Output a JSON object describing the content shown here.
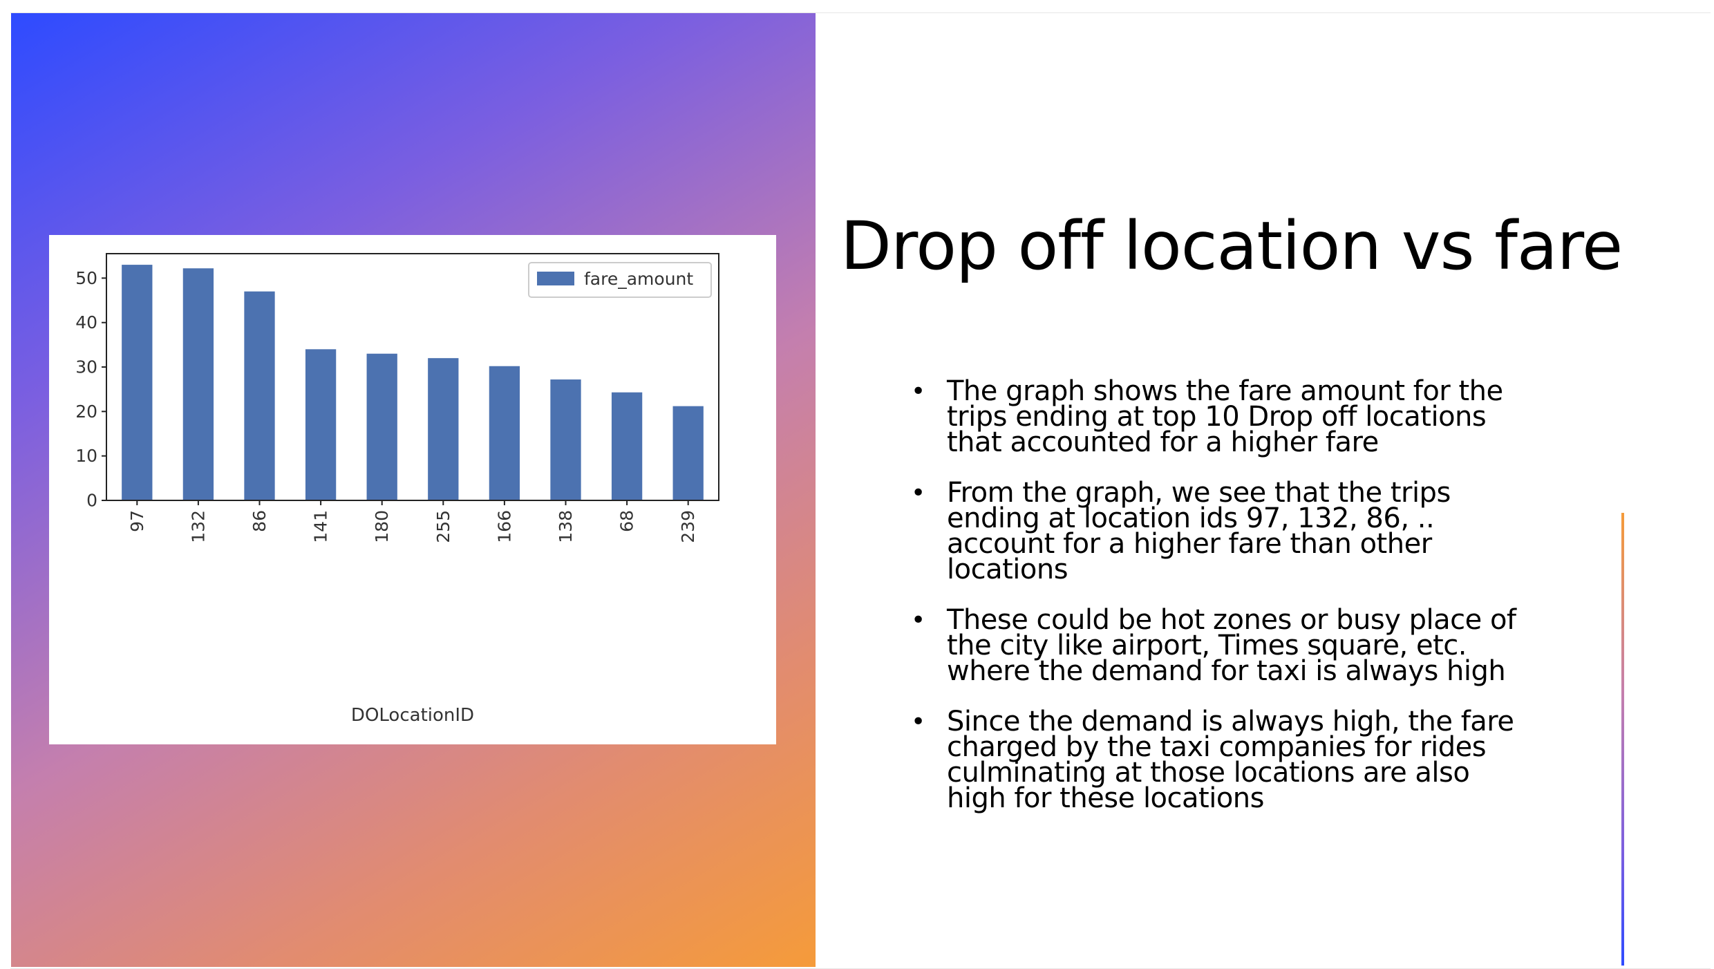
{
  "slide": {
    "title": "Drop off location vs fare",
    "bullets": [
      "The graph shows the fare amount for the trips ending at top 10 Drop off locations that accounted for a higher fare",
      "From the graph, we see that the trips ending at location ids 97, 132, 86, .. account for a higher fare than other locations",
      "These could be hot zones or busy place of the city like airport, Times square, etc. where the demand for taxi is always high",
      "Since the demand is always high, the fare charged by the taxi companies for rides culminating at those locations are also high for these locations"
    ]
  },
  "chart_data": {
    "type": "bar",
    "categories": [
      "97",
      "132",
      "86",
      "141",
      "180",
      "255",
      "166",
      "138",
      "68",
      "239"
    ],
    "series": [
      {
        "name": "fare_amount",
        "values": [
          53,
          52.2,
          47,
          34,
          33,
          32,
          30.2,
          27.2,
          24.3,
          21.2
        ]
      }
    ],
    "title": "",
    "xlabel": "DOLocationID",
    "ylabel": "",
    "ylim": [
      0,
      55.5
    ],
    "yticks": [
      0,
      10,
      20,
      30,
      40,
      50
    ],
    "legend": "top-right",
    "grid": false,
    "bar_color": "#4c72b0"
  }
}
